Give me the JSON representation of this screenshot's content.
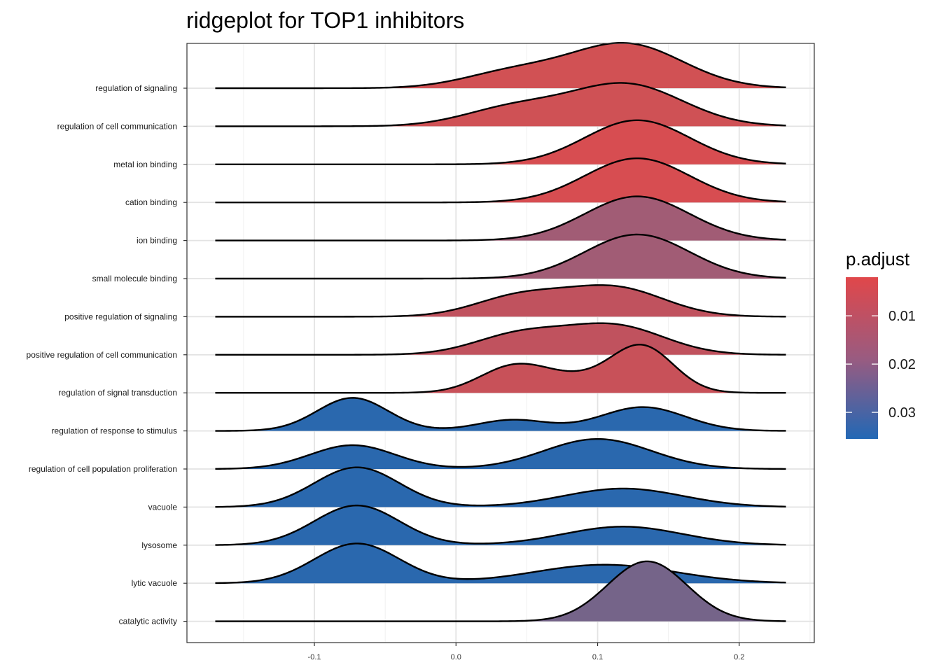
{
  "chart_data": {
    "type": "ridgeline",
    "title": "ridgeplot for TOP1 inhibitors",
    "xlabel": "",
    "ylabel": "",
    "xlim": [
      -0.19,
      0.253
    ],
    "x_ticks": [
      -0.1,
      0.0,
      0.1,
      0.2
    ],
    "x_tick_labels": [
      "-0.1",
      "0.0",
      "0.1",
      "0.2"
    ],
    "grid": true,
    "legend": {
      "title": "p.adjust",
      "position": "right",
      "color_low": "#E0474A",
      "color_mid": "#9A5B80",
      "color_high": "#2268B5",
      "range": [
        0.002,
        0.0355
      ],
      "ticks": [
        0.01,
        0.02,
        0.03
      ],
      "tick_labels": [
        "0.01",
        "0.02",
        "0.03"
      ]
    },
    "categories": [
      "regulation of signaling",
      "regulation of cell communication",
      "metal ion binding",
      "cation binding",
      "ion binding",
      "small molecule binding",
      "positive regulation of signaling",
      "positive regulation of cell communication",
      "regulation of signal transduction",
      "regulation of response to stimulus",
      "regulation of cell population proliferation",
      "vacuole",
      "lysosome",
      "lytic vacuole",
      "catalytic activity"
    ],
    "series": [
      {
        "name": "regulation of signaling",
        "p_adjust": 0.008,
        "fill": "#D15154",
        "components": [
          {
            "mu": 0.12,
            "sigma": 0.04,
            "height": 1.0
          },
          {
            "mu": 0.04,
            "sigma": 0.035,
            "height": 0.35
          }
        ]
      },
      {
        "name": "regulation of cell communication",
        "p_adjust": 0.009,
        "fill": "#CF5155",
        "components": [
          {
            "mu": 0.12,
            "sigma": 0.04,
            "height": 0.95
          },
          {
            "mu": 0.04,
            "sigma": 0.035,
            "height": 0.4
          }
        ]
      },
      {
        "name": "metal ion binding",
        "p_adjust": 0.005,
        "fill": "#D74D51",
        "components": [
          {
            "mu": 0.128,
            "sigma": 0.037,
            "height": 1.0
          }
        ]
      },
      {
        "name": "cation binding",
        "p_adjust": 0.005,
        "fill": "#D74D51",
        "components": [
          {
            "mu": 0.128,
            "sigma": 0.037,
            "height": 1.0
          }
        ]
      },
      {
        "name": "ion binding",
        "p_adjust": 0.02,
        "fill": "#A15C75",
        "components": [
          {
            "mu": 0.128,
            "sigma": 0.037,
            "height": 1.0
          }
        ]
      },
      {
        "name": "small molecule binding",
        "p_adjust": 0.02,
        "fill": "#A15C75",
        "components": [
          {
            "mu": 0.128,
            "sigma": 0.037,
            "height": 1.0
          }
        ]
      },
      {
        "name": "positive regulation of signaling",
        "p_adjust": 0.013,
        "fill": "#C0525E",
        "components": [
          {
            "mu": 0.112,
            "sigma": 0.035,
            "height": 0.65
          },
          {
            "mu": 0.045,
            "sigma": 0.032,
            "height": 0.45
          }
        ]
      },
      {
        "name": "positive regulation of cell communication",
        "p_adjust": 0.013,
        "fill": "#C0525E",
        "components": [
          {
            "mu": 0.112,
            "sigma": 0.035,
            "height": 0.65
          },
          {
            "mu": 0.045,
            "sigma": 0.032,
            "height": 0.45
          }
        ]
      },
      {
        "name": "regulation of signal transduction",
        "p_adjust": 0.011,
        "fill": "#C85159",
        "components": [
          {
            "mu": 0.132,
            "sigma": 0.022,
            "height": 1.0
          },
          {
            "mu": 0.04,
            "sigma": 0.024,
            "height": 0.55
          },
          {
            "mu": 0.085,
            "sigma": 0.03,
            "height": 0.3
          }
        ]
      },
      {
        "name": "regulation of response to stimulus",
        "p_adjust": 0.035,
        "fill": "#2A68AE",
        "components": [
          {
            "mu": -0.073,
            "sigma": 0.025,
            "height": 0.75
          },
          {
            "mu": 0.04,
            "sigma": 0.025,
            "height": 0.25
          },
          {
            "mu": 0.132,
            "sigma": 0.03,
            "height": 0.54
          }
        ]
      },
      {
        "name": "regulation of cell population proliferation",
        "p_adjust": 0.035,
        "fill": "#2A68AE",
        "components": [
          {
            "mu": -0.073,
            "sigma": 0.03,
            "height": 0.54
          },
          {
            "mu": 0.1,
            "sigma": 0.038,
            "height": 0.68
          }
        ]
      },
      {
        "name": "vacuole",
        "p_adjust": 0.035,
        "fill": "#2A68AE",
        "components": [
          {
            "mu": -0.07,
            "sigma": 0.03,
            "height": 0.9
          },
          {
            "mu": 0.118,
            "sigma": 0.042,
            "height": 0.42
          }
        ]
      },
      {
        "name": "lysosome",
        "p_adjust": 0.035,
        "fill": "#2A68AE",
        "components": [
          {
            "mu": -0.07,
            "sigma": 0.03,
            "height": 0.9
          },
          {
            "mu": 0.118,
            "sigma": 0.042,
            "height": 0.42
          }
        ]
      },
      {
        "name": "lytic vacuole",
        "p_adjust": 0.035,
        "fill": "#2A68AE",
        "components": [
          {
            "mu": -0.07,
            "sigma": 0.03,
            "height": 0.9
          },
          {
            "mu": 0.105,
            "sigma": 0.05,
            "height": 0.42
          }
        ]
      },
      {
        "name": "catalytic activity",
        "p_adjust": 0.024,
        "fill": "#756489",
        "components": [
          {
            "mu": 0.135,
            "sigma": 0.028,
            "height": 1.36
          }
        ]
      }
    ]
  }
}
